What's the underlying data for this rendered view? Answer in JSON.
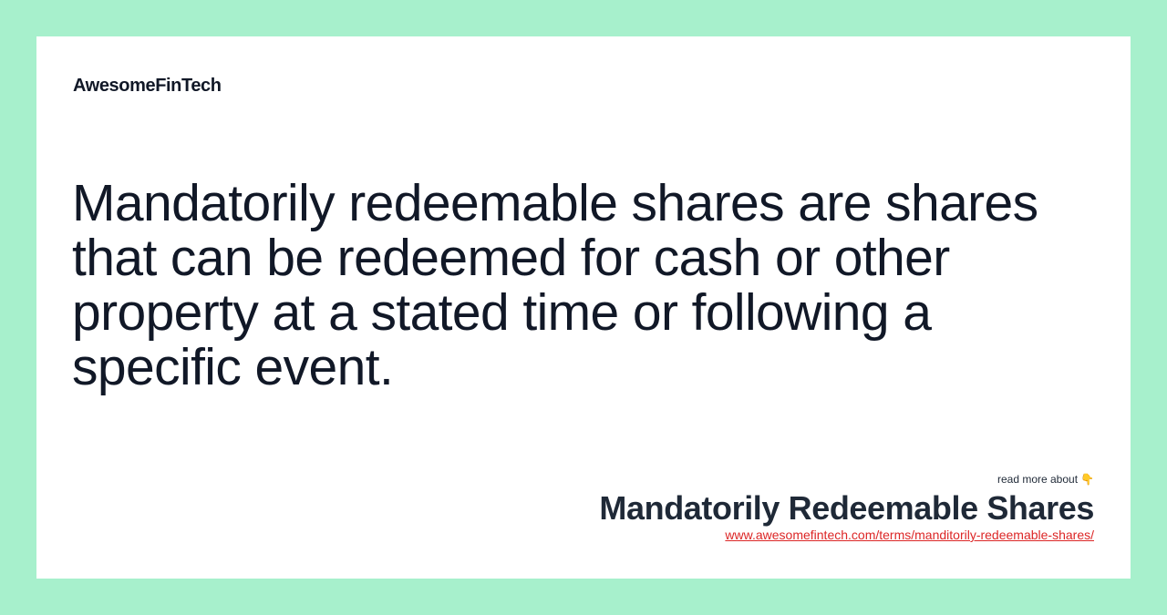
{
  "brand": {
    "name": "AwesomeFinTech"
  },
  "definition": {
    "text": "Mandatorily redeemable shares are shares that can be redeemed for cash or other property at a stated time or following a specific event."
  },
  "footer": {
    "read_more_label": "read more about",
    "pointer_icon": "👇",
    "term_title": "Mandatorily Redeemable Shares",
    "term_url": "www.awesomefintech.com/terms/manditorily-redeemable-shares/"
  },
  "colors": {
    "background": "#a7f0cc",
    "card": "#ffffff",
    "text": "#111827",
    "link": "#dc2626"
  }
}
